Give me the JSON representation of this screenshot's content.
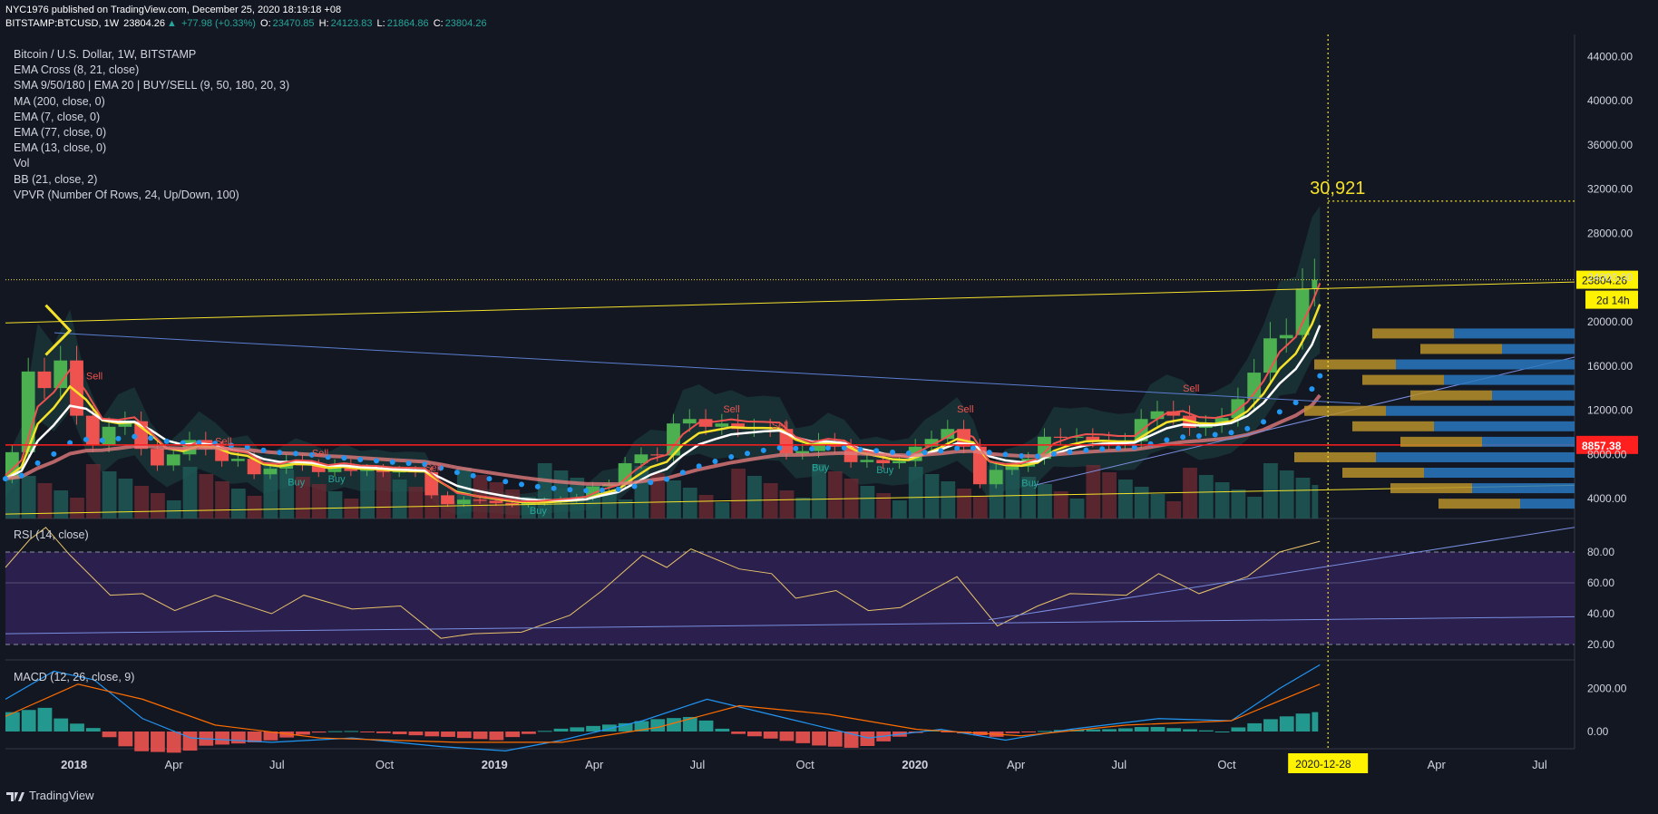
{
  "header": {
    "publisher": "NYC1976",
    "published_text": " published on TradingView.com, December 25, 2020 18:19:18 +08",
    "symbol": "BITSTAMP:BTCUSD, 1W",
    "last": "23804.26",
    "change": "+77.98 (+0.33%)",
    "o_label": "O:",
    "o": "23470.85",
    "h_label": "H:",
    "h": "24123.83",
    "l_label": "L:",
    "l": "21864.86",
    "c_label": "C:",
    "c": "23804.26"
  },
  "legend": [
    "Bitcoin / U.S. Dollar, 1W, BITSTAMP",
    "EMA Cross (8, 21, close)",
    "SMA 9/50/180 | EMA 20 | BUY/SELL (9, 50, 180, 20, 3)",
    "MA (200, close, 0)",
    "EMA (7, close, 0)",
    "EMA (77, close, 0)",
    "EMA (13, close, 0)",
    "Vol",
    "BB (21, close, 2)",
    "VPVR (Number Of Rows, 24, Up/Down, 100)"
  ],
  "rsi_label": "RSI (14, close)",
  "macd_label": "MACD (12, 26, close, 9)",
  "footer": {
    "brand": "TradingView"
  },
  "colors": {
    "background": "#131722",
    "up": "#26a69a",
    "down": "#ef5350",
    "yellow": "#f5e12a",
    "rsi_band": "#2a1f4d"
  },
  "chart_data": [
    {
      "type": "candlestick",
      "title": "Bitcoin / U.S. Dollar, 1W, BITSTAMP",
      "xlabel": "",
      "ylabel": "",
      "x_ticks": [
        "2018",
        "Apr",
        "Jul",
        "Oct",
        "2019",
        "Apr",
        "Jul",
        "Oct",
        "2020",
        "Apr",
        "Jul",
        "Oct",
        "Apr",
        "Jul"
      ],
      "y_ticks": [
        "4000.00",
        "8000.00",
        "12000.00",
        "16000.00",
        "20000.00",
        "24000.00",
        "28000.00",
        "32000.00",
        "36000.00",
        "40000.00",
        "44000.00"
      ],
      "ylim": [
        2200,
        46000
      ],
      "x_range": [
        "2017-11-06",
        "2021-07-30"
      ],
      "last_price_label": "23804.26",
      "countdown_label": "2d 14h",
      "horizontal_line_label": "8857.38",
      "horizontal_line_value": 8857.38,
      "target_label": "30,921",
      "target_value": 30921,
      "cursor_date_label": "2020-12-28",
      "buy_sell_labels": [
        {
          "text": "Sell",
          "date": "2018-01-15",
          "value": 14800
        },
        {
          "text": "Sell",
          "date": "2018-05-07",
          "value": 8900
        },
        {
          "text": "Sell",
          "date": "2018-07-30",
          "value": 7800
        },
        {
          "text": "Sell",
          "date": "2018-11-05",
          "value": 6500
        },
        {
          "text": "Buy",
          "date": "2018-07-09",
          "value": 5200
        },
        {
          "text": "Buy",
          "date": "2018-08-13",
          "value": 5500
        },
        {
          "text": "Buy",
          "date": "2019-02-04",
          "value": 2600
        },
        {
          "text": "Sell",
          "date": "2019-07-22",
          "value": 11800
        },
        {
          "text": "Sell",
          "date": "2019-09-02",
          "value": 10300
        },
        {
          "text": "Buy",
          "date": "2019-10-07",
          "value": 6500
        },
        {
          "text": "Buy",
          "date": "2019-12-02",
          "value": 6300
        },
        {
          "text": "Sell",
          "date": "2020-02-10",
          "value": 11800
        },
        {
          "text": "Buy",
          "date": "2020-04-06",
          "value": 5100
        },
        {
          "text": "Sell",
          "date": "2020-08-24",
          "value": 13700
        }
      ],
      "close_series": [
        {
          "d": "2017-11-06",
          "c": 5800
        },
        {
          "d": "2017-11-20",
          "c": 8200
        },
        {
          "d": "2017-12-04",
          "c": 15500
        },
        {
          "d": "2017-12-18",
          "c": 14000
        },
        {
          "d": "2018-01-01",
          "c": 16500
        },
        {
          "d": "2018-01-15",
          "c": 11500
        },
        {
          "d": "2018-01-29",
          "c": 8800
        },
        {
          "d": "2018-02-12",
          "c": 10500
        },
        {
          "d": "2018-02-26",
          "c": 11000
        },
        {
          "d": "2018-03-12",
          "c": 8500
        },
        {
          "d": "2018-03-26",
          "c": 7000
        },
        {
          "d": "2018-04-09",
          "c": 8000
        },
        {
          "d": "2018-04-23",
          "c": 9300
        },
        {
          "d": "2018-05-07",
          "c": 8500
        },
        {
          "d": "2018-05-21",
          "c": 7400
        },
        {
          "d": "2018-06-04",
          "c": 7600
        },
        {
          "d": "2018-06-18",
          "c": 6200
        },
        {
          "d": "2018-07-02",
          "c": 6700
        },
        {
          "d": "2018-07-16",
          "c": 7400
        },
        {
          "d": "2018-07-30",
          "c": 7000
        },
        {
          "d": "2018-08-13",
          "c": 6400
        },
        {
          "d": "2018-08-27",
          "c": 7000
        },
        {
          "d": "2018-09-10",
          "c": 6500
        },
        {
          "d": "2018-09-24",
          "c": 6600
        },
        {
          "d": "2018-10-08",
          "c": 6400
        },
        {
          "d": "2018-10-22",
          "c": 6450
        },
        {
          "d": "2018-11-05",
          "c": 6400
        },
        {
          "d": "2018-11-19",
          "c": 4300
        },
        {
          "d": "2018-12-03",
          "c": 3500
        },
        {
          "d": "2018-12-17",
          "c": 3900
        },
        {
          "d": "2018-12-31",
          "c": 3800
        },
        {
          "d": "2019-01-14",
          "c": 3600
        },
        {
          "d": "2019-01-28",
          "c": 3450
        },
        {
          "d": "2019-02-11",
          "c": 3600
        },
        {
          "d": "2019-02-25",
          "c": 3800
        },
        {
          "d": "2019-03-11",
          "c": 3900
        },
        {
          "d": "2019-03-25",
          "c": 4100
        },
        {
          "d": "2019-04-08",
          "c": 5100
        },
        {
          "d": "2019-04-22",
          "c": 5300
        },
        {
          "d": "2019-05-06",
          "c": 7200
        },
        {
          "d": "2019-05-20",
          "c": 8000
        },
        {
          "d": "2019-06-03",
          "c": 7900
        },
        {
          "d": "2019-06-17",
          "c": 10800
        },
        {
          "d": "2019-07-01",
          "c": 11200
        },
        {
          "d": "2019-07-15",
          "c": 10500
        },
        {
          "d": "2019-07-29",
          "c": 10800
        },
        {
          "d": "2019-08-12",
          "c": 10300
        },
        {
          "d": "2019-08-26",
          "c": 10400
        },
        {
          "d": "2019-09-09",
          "c": 10300
        },
        {
          "d": "2019-09-23",
          "c": 8100
        },
        {
          "d": "2019-10-07",
          "c": 8300
        },
        {
          "d": "2019-10-21",
          "c": 9200
        },
        {
          "d": "2019-11-04",
          "c": 8700
        },
        {
          "d": "2019-11-18",
          "c": 7300
        },
        {
          "d": "2019-12-02",
          "c": 7500
        },
        {
          "d": "2019-12-16",
          "c": 7200
        },
        {
          "d": "2019-12-30",
          "c": 7400
        },
        {
          "d": "2020-01-13",
          "c": 8700
        },
        {
          "d": "2020-01-27",
          "c": 9400
        },
        {
          "d": "2020-02-10",
          "c": 10300
        },
        {
          "d": "2020-02-24",
          "c": 8700
        },
        {
          "d": "2020-03-09",
          "c": 5300
        },
        {
          "d": "2020-03-23",
          "c": 6600
        },
        {
          "d": "2020-04-06",
          "c": 6900
        },
        {
          "d": "2020-04-20",
          "c": 7600
        },
        {
          "d": "2020-05-04",
          "c": 9600
        },
        {
          "d": "2020-05-18",
          "c": 9500
        },
        {
          "d": "2020-06-01",
          "c": 9600
        },
        {
          "d": "2020-06-15",
          "c": 9300
        },
        {
          "d": "2020-06-29",
          "c": 9100
        },
        {
          "d": "2020-07-13",
          "c": 9200
        },
        {
          "d": "2020-07-27",
          "c": 11200
        },
        {
          "d": "2020-08-10",
          "c": 11900
        },
        {
          "d": "2020-08-24",
          "c": 11500
        },
        {
          "d": "2020-09-07",
          "c": 10400
        },
        {
          "d": "2020-09-21",
          "c": 10700
        },
        {
          "d": "2020-10-05",
          "c": 11300
        },
        {
          "d": "2020-10-19",
          "c": 13000
        },
        {
          "d": "2020-11-02",
          "c": 15400
        },
        {
          "d": "2020-11-16",
          "c": 18500
        },
        {
          "d": "2020-11-30",
          "c": 18800
        },
        {
          "d": "2020-12-14",
          "c": 23000
        },
        {
          "d": "2020-12-21",
          "c": 23804
        }
      ]
    },
    {
      "type": "line",
      "title": "RSI (14, close)",
      "ylim": [
        10,
        100
      ],
      "y_ticks": [
        "20.00",
        "40.00",
        "60.00",
        "80.00"
      ],
      "levels": [
        20,
        80
      ],
      "series": [
        {
          "name": "RSI",
          "points": [
            {
              "d": "2017-11-06",
              "v": 70
            },
            {
              "d": "2017-11-27",
              "v": 88
            },
            {
              "d": "2017-12-11",
              "v": 96
            },
            {
              "d": "2018-01-01",
              "v": 78
            },
            {
              "d": "2018-02-05",
              "v": 52
            },
            {
              "d": "2018-03-05",
              "v": 53
            },
            {
              "d": "2018-04-02",
              "v": 42
            },
            {
              "d": "2018-05-07",
              "v": 52
            },
            {
              "d": "2018-06-25",
              "v": 40
            },
            {
              "d": "2018-07-23",
              "v": 52
            },
            {
              "d": "2018-09-03",
              "v": 43
            },
            {
              "d": "2018-10-15",
              "v": 45
            },
            {
              "d": "2018-11-19",
              "v": 24
            },
            {
              "d": "2018-12-17",
              "v": 27
            },
            {
              "d": "2019-01-28",
              "v": 28
            },
            {
              "d": "2019-03-11",
              "v": 39
            },
            {
              "d": "2019-04-08",
              "v": 55
            },
            {
              "d": "2019-05-13",
              "v": 78
            },
            {
              "d": "2019-06-03",
              "v": 70
            },
            {
              "d": "2019-06-24",
              "v": 82
            },
            {
              "d": "2019-08-05",
              "v": 69
            },
            {
              "d": "2019-09-02",
              "v": 66
            },
            {
              "d": "2019-09-23",
              "v": 50
            },
            {
              "d": "2019-10-28",
              "v": 55
            },
            {
              "d": "2019-11-25",
              "v": 42
            },
            {
              "d": "2019-12-23",
              "v": 44
            },
            {
              "d": "2020-02-10",
              "v": 64
            },
            {
              "d": "2020-03-16",
              "v": 32
            },
            {
              "d": "2020-04-20",
              "v": 45
            },
            {
              "d": "2020-05-18",
              "v": 53
            },
            {
              "d": "2020-07-06",
              "v": 52
            },
            {
              "d": "2020-08-03",
              "v": 66
            },
            {
              "d": "2020-09-07",
              "v": 53
            },
            {
              "d": "2020-10-19",
              "v": 64
            },
            {
              "d": "2020-11-16",
              "v": 80
            },
            {
              "d": "2020-12-21",
              "v": 87
            }
          ]
        }
      ]
    },
    {
      "type": "bar",
      "title": "MACD (12, 26, close, 9)",
      "ylim": [
        -800,
        3200
      ],
      "y_ticks": [
        "0.00",
        "2000.00"
      ],
      "series": [
        {
          "name": "MACD",
          "points": [
            {
              "d": "2017-11-06",
              "v": 1500
            },
            {
              "d": "2017-12-18",
              "v": 2800
            },
            {
              "d": "2018-01-22",
              "v": 2400
            },
            {
              "d": "2018-03-05",
              "v": 600
            },
            {
              "d": "2018-04-16",
              "v": -300
            },
            {
              "d": "2018-06-25",
              "v": -500
            },
            {
              "d": "2018-09-03",
              "v": -300
            },
            {
              "d": "2018-11-19",
              "v": -700
            },
            {
              "d": "2019-01-14",
              "v": -900
            },
            {
              "d": "2019-03-04",
              "v": -400
            },
            {
              "d": "2019-05-13",
              "v": 500
            },
            {
              "d": "2019-07-08",
              "v": 1500
            },
            {
              "d": "2019-09-16",
              "v": 600
            },
            {
              "d": "2019-11-25",
              "v": -300
            },
            {
              "d": "2020-01-27",
              "v": 100
            },
            {
              "d": "2020-03-23",
              "v": -400
            },
            {
              "d": "2020-05-18",
              "v": 100
            },
            {
              "d": "2020-08-03",
              "v": 600
            },
            {
              "d": "2020-10-05",
              "v": 500
            },
            {
              "d": "2020-11-16",
              "v": 2000
            },
            {
              "d": "2020-12-21",
              "v": 3100
            }
          ]
        },
        {
          "name": "Signal",
          "points": [
            {
              "d": "2017-11-06",
              "v": 700
            },
            {
              "d": "2018-01-08",
              "v": 2200
            },
            {
              "d": "2018-03-05",
              "v": 1500
            },
            {
              "d": "2018-05-07",
              "v": 300
            },
            {
              "d": "2018-08-06",
              "v": -300
            },
            {
              "d": "2018-12-03",
              "v": -500
            },
            {
              "d": "2019-03-04",
              "v": -500
            },
            {
              "d": "2019-05-27",
              "v": 200
            },
            {
              "d": "2019-08-05",
              "v": 1200
            },
            {
              "d": "2019-10-21",
              "v": 800
            },
            {
              "d": "2020-01-06",
              "v": 100
            },
            {
              "d": "2020-04-06",
              "v": -200
            },
            {
              "d": "2020-07-06",
              "v": 300
            },
            {
              "d": "2020-10-05",
              "v": 500
            },
            {
              "d": "2020-12-21",
              "v": 2200
            }
          ]
        }
      ]
    }
  ]
}
